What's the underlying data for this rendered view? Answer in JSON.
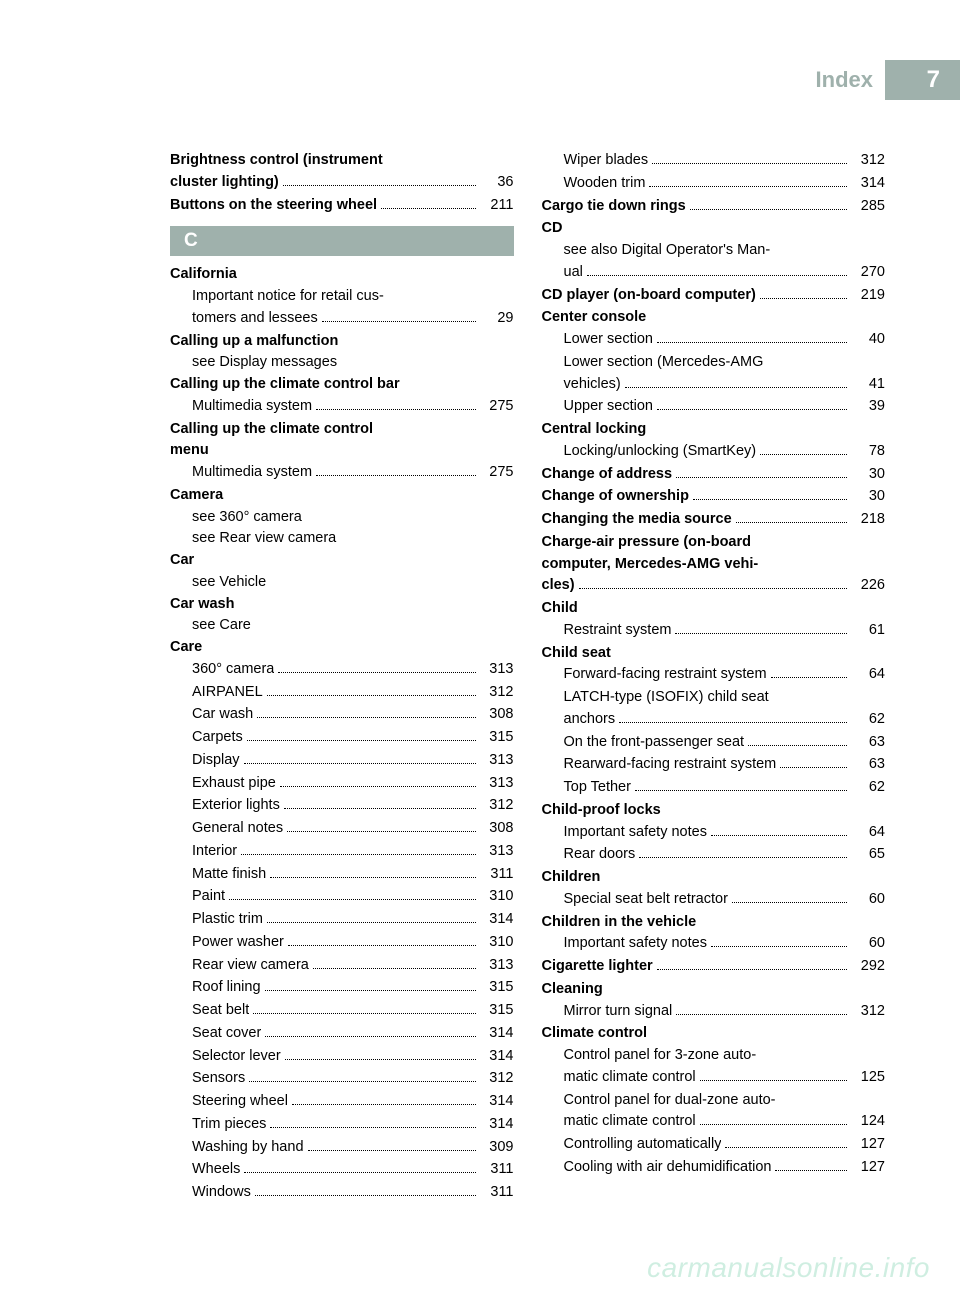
{
  "header": {
    "title": "Index",
    "page_number": "7"
  },
  "section_letter": "C",
  "watermark": "carmanualsonline.info",
  "colors": {
    "accent": "#9fb1ac",
    "text": "#000000",
    "watermark": "#cfeee1",
    "background": "#ffffff"
  },
  "left_column": [
    {
      "type": "multi-bold-page",
      "lines": [
        "Brightness control (instrument",
        "cluster lighting)"
      ],
      "page": "36"
    },
    {
      "type": "bold-page",
      "label": "Buttons on the steering wheel",
      "page": "211"
    },
    {
      "type": "letter"
    },
    {
      "type": "bold",
      "label": "California"
    },
    {
      "type": "sub-multi-page",
      "lines": [
        "Important notice for retail cus-",
        "tomers and lessees"
      ],
      "page": "29"
    },
    {
      "type": "bold",
      "label": "Calling up a malfunction"
    },
    {
      "type": "sub",
      "label": "see Display messages"
    },
    {
      "type": "bold",
      "label": "Calling up the climate control bar"
    },
    {
      "type": "sub-page",
      "label": "Multimedia system",
      "page": "275"
    },
    {
      "type": "bold-multi",
      "lines": [
        "Calling up the climate control",
        "menu"
      ]
    },
    {
      "type": "sub-page",
      "label": "Multimedia system",
      "page": "275"
    },
    {
      "type": "bold",
      "label": "Camera"
    },
    {
      "type": "sub",
      "label": "see 360° camera"
    },
    {
      "type": "sub",
      "label": "see Rear view camera"
    },
    {
      "type": "bold",
      "label": "Car"
    },
    {
      "type": "sub",
      "label": "see Vehicle"
    },
    {
      "type": "bold",
      "label": "Car wash"
    },
    {
      "type": "sub",
      "label": "see Care"
    },
    {
      "type": "bold",
      "label": "Care"
    },
    {
      "type": "sub-page",
      "label": "360° camera",
      "page": "313"
    },
    {
      "type": "sub-page",
      "label": "AIRPANEL",
      "page": "312"
    },
    {
      "type": "sub-page",
      "label": "Car wash",
      "page": "308"
    },
    {
      "type": "sub-page",
      "label": "Carpets",
      "page": "315"
    },
    {
      "type": "sub-page",
      "label": "Display",
      "page": "313"
    },
    {
      "type": "sub-page",
      "label": "Exhaust pipe",
      "page": "313"
    },
    {
      "type": "sub-page",
      "label": "Exterior lights",
      "page": "312"
    },
    {
      "type": "sub-page",
      "label": "General notes",
      "page": "308"
    },
    {
      "type": "sub-page",
      "label": "Interior",
      "page": "313"
    },
    {
      "type": "sub-page",
      "label": "Matte finish",
      "page": "311"
    },
    {
      "type": "sub-page",
      "label": "Paint",
      "page": "310"
    },
    {
      "type": "sub-page",
      "label": "Plastic trim",
      "page": "314"
    },
    {
      "type": "sub-page",
      "label": "Power washer",
      "page": "310"
    },
    {
      "type": "sub-page",
      "label": "Rear view camera",
      "page": "313"
    },
    {
      "type": "sub-page",
      "label": "Roof lining",
      "page": "315"
    },
    {
      "type": "sub-page",
      "label": "Seat belt",
      "page": "315"
    },
    {
      "type": "sub-page",
      "label": "Seat cover",
      "page": "314"
    },
    {
      "type": "sub-page",
      "label": "Selector lever",
      "page": "314"
    },
    {
      "type": "sub-page",
      "label": "Sensors",
      "page": "312"
    },
    {
      "type": "sub-page",
      "label": "Steering wheel",
      "page": "314"
    },
    {
      "type": "sub-page",
      "label": "Trim pieces",
      "page": "314"
    },
    {
      "type": "sub-page",
      "label": "Washing by hand",
      "page": "309"
    },
    {
      "type": "sub-page",
      "label": "Wheels",
      "page": "311"
    },
    {
      "type": "sub-page",
      "label": "Windows",
      "page": "311"
    }
  ],
  "right_column": [
    {
      "type": "sub-page",
      "label": "Wiper blades",
      "page": "312"
    },
    {
      "type": "sub-page",
      "label": "Wooden trim",
      "page": "314"
    },
    {
      "type": "bold-page",
      "label": "Cargo tie down rings",
      "page": "285"
    },
    {
      "type": "bold",
      "label": "CD"
    },
    {
      "type": "sub-multi-page",
      "lines": [
        "see also Digital Operator's Man-",
        "ual"
      ],
      "page": "270"
    },
    {
      "type": "bold-page",
      "label": "CD player (on-board computer)",
      "page": "219"
    },
    {
      "type": "bold",
      "label": "Center console"
    },
    {
      "type": "sub-page",
      "label": "Lower section",
      "page": "40"
    },
    {
      "type": "sub-multi-page",
      "lines": [
        "Lower section (Mercedes-AMG",
        "vehicles)"
      ],
      "page": "41"
    },
    {
      "type": "sub-page",
      "label": "Upper section",
      "page": "39"
    },
    {
      "type": "bold",
      "label": "Central locking"
    },
    {
      "type": "sub-page",
      "label": "Locking/unlocking (SmartKey)",
      "page": "78"
    },
    {
      "type": "bold-page",
      "label": "Change of address",
      "page": "30"
    },
    {
      "type": "bold-page",
      "label": "Change of ownership",
      "page": "30"
    },
    {
      "type": "bold-page",
      "label": "Changing the media source",
      "page": "218"
    },
    {
      "type": "multi-bold-page",
      "lines": [
        "Charge-air pressure (on-board",
        "computer, Mercedes-AMG vehi-",
        "cles)"
      ],
      "page": "226"
    },
    {
      "type": "bold",
      "label": "Child"
    },
    {
      "type": "sub-page",
      "label": "Restraint system",
      "page": "61"
    },
    {
      "type": "bold",
      "label": "Child seat"
    },
    {
      "type": "sub-page",
      "label": "Forward-facing restraint system",
      "page": "64"
    },
    {
      "type": "sub-multi-page",
      "lines": [
        "LATCH-type (ISOFIX) child seat",
        "anchors"
      ],
      "page": "62"
    },
    {
      "type": "sub-page",
      "label": "On the front-passenger seat",
      "page": "63"
    },
    {
      "type": "sub-page",
      "label": "Rearward-facing restraint system",
      "page": "63"
    },
    {
      "type": "sub-page",
      "label": "Top Tether",
      "page": "62"
    },
    {
      "type": "bold",
      "label": "Child-proof locks"
    },
    {
      "type": "sub-page",
      "label": "Important safety notes",
      "page": "64"
    },
    {
      "type": "sub-page",
      "label": "Rear doors",
      "page": "65"
    },
    {
      "type": "bold",
      "label": "Children"
    },
    {
      "type": "sub-page",
      "label": "Special seat belt retractor",
      "page": "60"
    },
    {
      "type": "bold",
      "label": "Children in the vehicle"
    },
    {
      "type": "sub-page",
      "label": "Important safety notes",
      "page": "60"
    },
    {
      "type": "bold-page",
      "label": "Cigarette lighter",
      "page": "292"
    },
    {
      "type": "bold",
      "label": "Cleaning"
    },
    {
      "type": "sub-page",
      "label": "Mirror turn signal",
      "page": "312"
    },
    {
      "type": "bold",
      "label": "Climate control"
    },
    {
      "type": "sub-multi-page",
      "lines": [
        "Control panel for 3-zone auto-",
        "matic climate control"
      ],
      "page": "125"
    },
    {
      "type": "sub-multi-page",
      "lines": [
        "Control panel for dual-zone auto-",
        "matic climate control"
      ],
      "page": "124"
    },
    {
      "type": "sub-page",
      "label": "Controlling automatically",
      "page": "127"
    },
    {
      "type": "sub-page",
      "label": "Cooling with air dehumidification",
      "page": "127"
    }
  ]
}
